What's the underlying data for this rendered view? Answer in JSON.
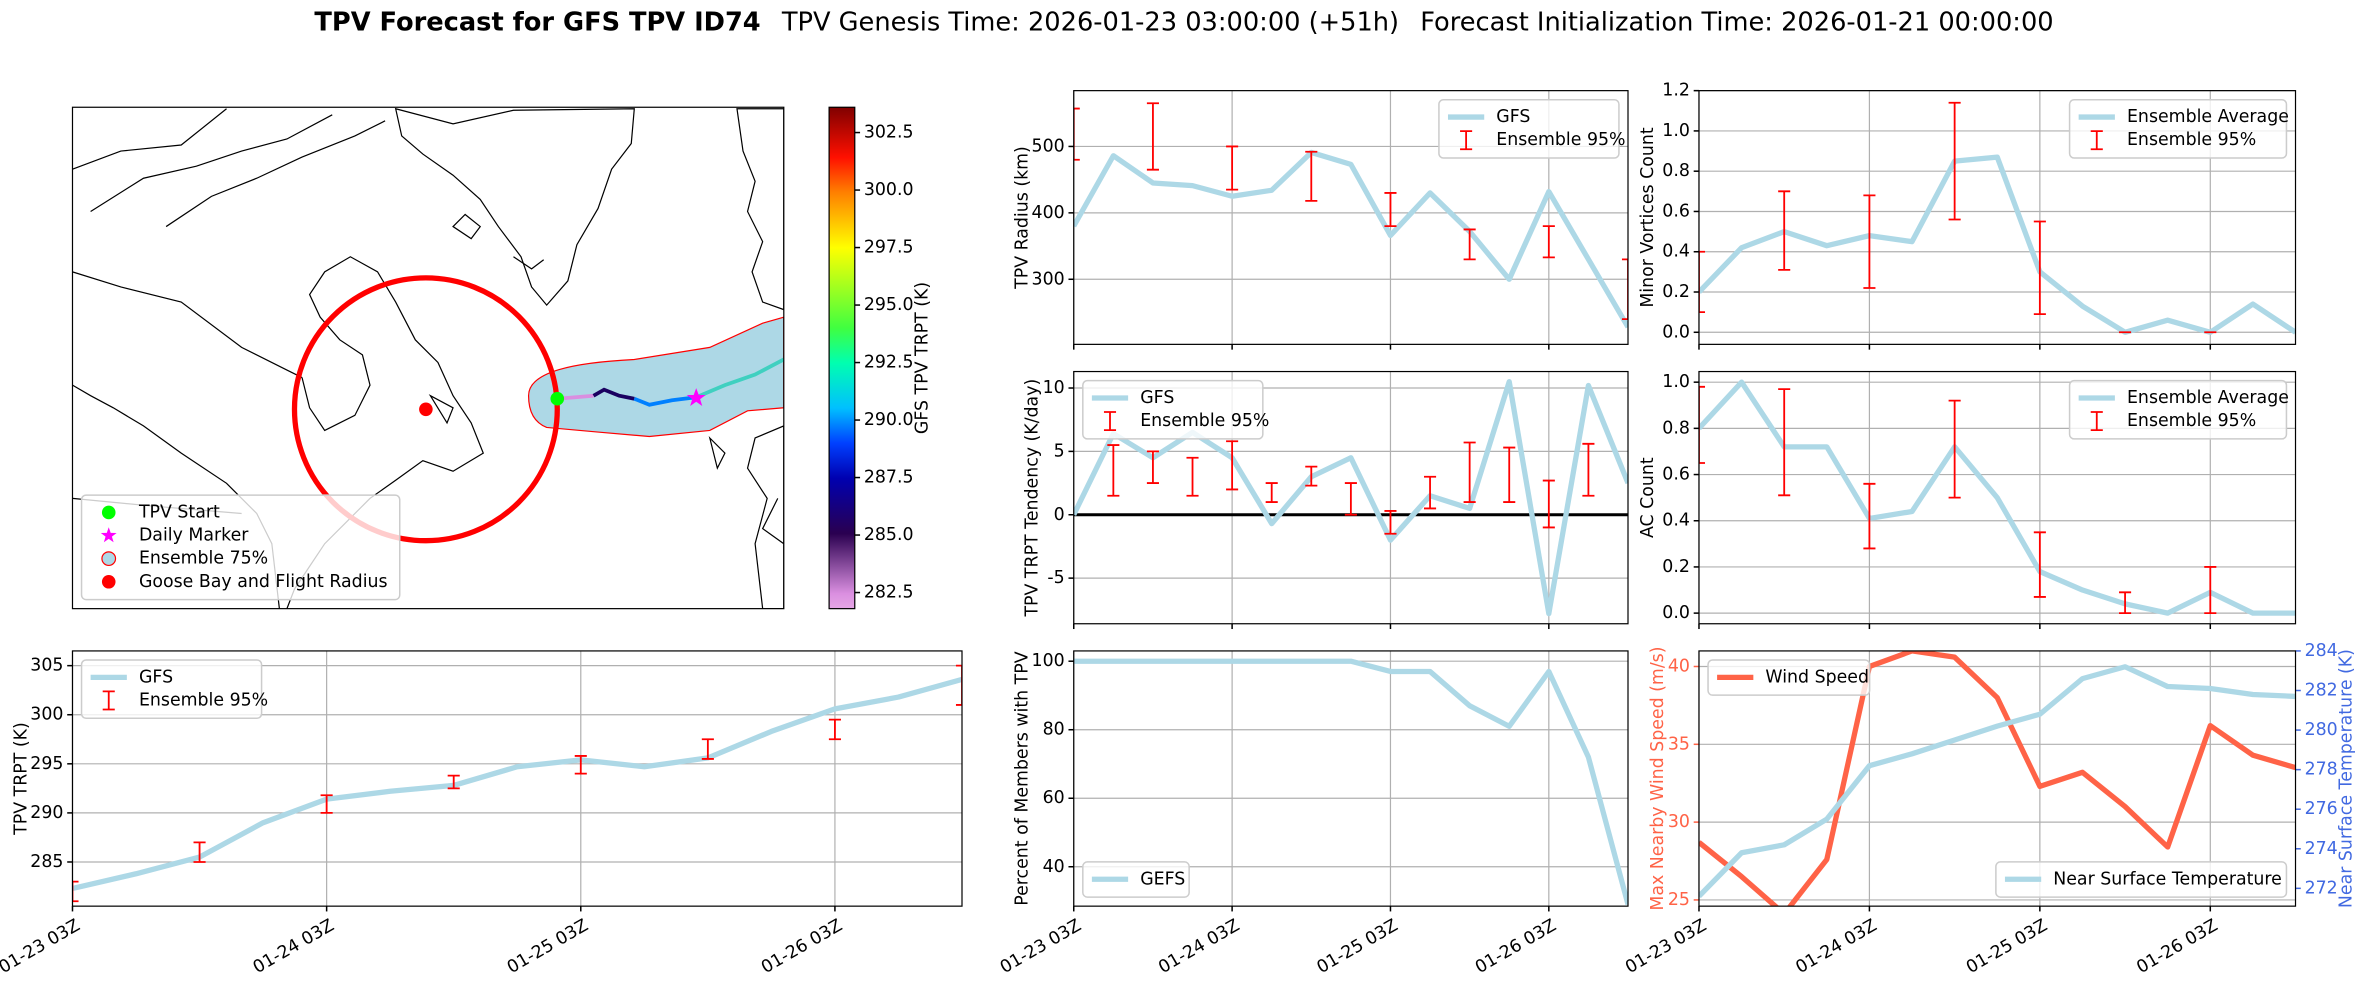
{
  "figure": {
    "title": "TPV Forecast for GFS TPV ID74",
    "genesis": "TPV Genesis Time: 2026-01-23 03:00:00 (+51h)",
    "init": "Forecast Initialization Time: 2026-01-21 00:00:00"
  },
  "chart_data": [
    {
      "type": "map",
      "legend_loc": "lower left",
      "legend": [
        {
          "label": "TPV Start",
          "color": "#00ff00",
          "marker": "circle"
        },
        {
          "label": "Daily Marker",
          "color": "#ff00ff",
          "marker": "star"
        },
        {
          "label": "Ensemble 75%",
          "color": "#add8e6",
          "marker": "circle"
        },
        {
          "label": "Goose Bay and Flight Radius",
          "color": "#ff0000",
          "marker": "circle"
        }
      ],
      "colorbar": {
        "label": "GFS TPV TRPT (K)",
        "clim": [
          281.8,
          303.6
        ],
        "ticks": [
          282.5,
          {
            "value": 285,
            "label": "285.0"
          },
          287.5,
          {
            "value": 290,
            "label": "290.0"
          },
          292.5,
          {
            "value": 295,
            "label": "295.0"
          },
          297.5,
          {
            "value": 300,
            "label": "300.0"
          },
          302.5
        ]
      }
    },
    {
      "type": "line",
      "ylabel": "TPV Radius (km)",
      "ylim": [
        202,
        584
      ],
      "yticks": [
        300,
        400,
        500
      ],
      "grid": true,
      "legend": "upper right",
      "series": [
        {
          "name": "GFS",
          "color": "#add8e6",
          "values": [
            380,
            486,
            445,
            441,
            425,
            434,
            491,
            473,
            366,
            430,
            372,
            300,
            432,
            330,
            228
          ]
        }
      ],
      "errorbars": {
        "name": "Ensemble 95%",
        "color": "#ff0000",
        "low": [
          480,
          null,
          465,
          null,
          435,
          null,
          418,
          null,
          380,
          null,
          330,
          null,
          333,
          null,
          240
        ],
        "high": [
          557,
          null,
          565,
          null,
          500,
          null,
          492,
          null,
          430,
          null,
          375,
          null,
          380,
          null,
          330
        ]
      }
    },
    {
      "type": "line",
      "ylabel": "Minor Vortices Count",
      "ylim": [
        -0.06,
        1.2
      ],
      "yticks": [
        {
          "value": 0,
          "label": "0.0"
        },
        0.2,
        0.4,
        0.6,
        0.8,
        {
          "value": 1,
          "label": "1.0"
        },
        1.2
      ],
      "grid": true,
      "legend": "upper right",
      "series": [
        {
          "name": "Ensemble Average",
          "color": "#add8e6",
          "values": [
            0.2,
            0.42,
            0.5,
            0.43,
            0.48,
            0.45,
            0.85,
            0.87,
            0.3,
            0.13,
            0.0,
            0.06,
            0.0,
            0.14,
            0.0
          ]
        }
      ],
      "errorbars": {
        "name": "Ensemble 95%",
        "color": "#ff0000",
        "low": [
          0.1,
          null,
          0.31,
          null,
          0.22,
          null,
          0.56,
          null,
          0.09,
          null,
          0.0,
          null,
          0.0,
          null,
          null
        ],
        "high": [
          0.4,
          null,
          0.7,
          null,
          0.68,
          null,
          1.14,
          null,
          0.55,
          null,
          0.0,
          null,
          0.0,
          null,
          null
        ]
      }
    },
    {
      "type": "line",
      "ylabel": "TPV TRPT Tendency (K/day)",
      "ylim": [
        -8.6,
        11.3
      ],
      "yticks": [
        -5,
        0,
        5,
        10
      ],
      "grid": true,
      "legend": "upper left",
      "hline": 0,
      "series": [
        {
          "name": "GFS",
          "color": "#add8e6",
          "values": [
            0,
            6.4,
            4.5,
            6.5,
            4.5,
            -0.7,
            3,
            4.5,
            -2,
            1.5,
            0.5,
            10.5,
            -7.8,
            10.2,
            2.5
          ]
        }
      ],
      "errorbars": {
        "name": "Ensemble 95%",
        "color": "#ff0000",
        "low": [
          null,
          1.5,
          2.5,
          1.5,
          2,
          1,
          2.3,
          0,
          -1.5,
          0.5,
          1,
          1,
          -1,
          1.5,
          null
        ],
        "high": [
          null,
          5.5,
          5,
          4.5,
          5.8,
          2.5,
          3.8,
          2.5,
          0.3,
          3,
          5.7,
          5.3,
          2.7,
          5.6,
          null
        ]
      }
    },
    {
      "type": "line",
      "ylabel": "AC Count",
      "ylim": [
        -0.046,
        1.046
      ],
      "yticks": [
        {
          "value": 0,
          "label": "0.0"
        },
        0.2,
        0.4,
        0.6,
        0.8,
        {
          "value": 1,
          "label": "1.0"
        }
      ],
      "grid": true,
      "legend": "upper right",
      "series": [
        {
          "name": "Ensemble Average",
          "color": "#add8e6",
          "values": [
            0.8,
            1.0,
            0.72,
            0.72,
            0.41,
            0.44,
            0.72,
            0.5,
            0.18,
            0.1,
            0.04,
            0.0,
            0.09,
            0.0,
            0.0
          ]
        }
      ],
      "errorbars": {
        "name": "Ensemble 95%",
        "color": "#ff0000",
        "low": [
          0.65,
          null,
          0.51,
          null,
          0.28,
          null,
          0.5,
          null,
          0.07,
          null,
          0.0,
          null,
          0.0,
          null,
          null
        ],
        "high": [
          0.98,
          null,
          0.97,
          null,
          0.56,
          null,
          0.92,
          null,
          0.35,
          null,
          0.09,
          null,
          0.2,
          null,
          null
        ]
      }
    },
    {
      "type": "line",
      "ylabel": "TPV TRPT (K)",
      "ylim": [
        280.5,
        306.5
      ],
      "yticks": [
        285,
        290,
        295,
        300,
        305
      ],
      "grid": true,
      "legend": "upper left",
      "categories": [
        "01-23 03Z",
        null,
        null,
        null,
        "01-24 03Z",
        null,
        null,
        null,
        "01-25 03Z",
        null,
        null,
        null,
        "01-26 03Z",
        null,
        null
      ],
      "series": [
        {
          "name": "GFS",
          "color": "#add8e6",
          "values": [
            282.3,
            283.8,
            285.5,
            289,
            291.4,
            292.2,
            292.8,
            294.7,
            295.4,
            294.7,
            295.6,
            298.3,
            300.6,
            301.8,
            303.6
          ]
        }
      ],
      "errorbars": {
        "name": "Ensemble 95%",
        "color": "#ff0000",
        "low": [
          281,
          null,
          285,
          null,
          290,
          null,
          292.5,
          null,
          294,
          null,
          295.5,
          null,
          297.5,
          null,
          301
        ],
        "high": [
          283,
          null,
          287,
          null,
          291.8,
          null,
          293.8,
          null,
          295.8,
          null,
          297.5,
          null,
          299.5,
          null,
          305
        ]
      }
    },
    {
      "type": "line",
      "ylabel": "Percent of Members with TPV",
      "ylim": [
        28.5,
        103
      ],
      "yticks": [
        40,
        60,
        80,
        100
      ],
      "grid": true,
      "legend": "lower left",
      "categories": [
        "01-23 03Z",
        null,
        null,
        null,
        "01-24 03Z",
        null,
        null,
        null,
        "01-25 03Z",
        null,
        null,
        null,
        "01-26 03Z",
        null,
        null
      ],
      "series": [
        {
          "name": "GEFS",
          "color": "#add8e6",
          "values": [
            100,
            100,
            100,
            100,
            100,
            100,
            100,
            100,
            97,
            97,
            87,
            81,
            97,
            72,
            29
          ]
        }
      ]
    },
    {
      "type": "line",
      "ylabel": "Max Nearby Wind Speed (m/s)",
      "ycolor": "#ff6347",
      "ylim": [
        24.6,
        41
      ],
      "yticks": [
        25,
        30,
        35,
        40
      ],
      "y2label": "Near Surface Temperature (K)",
      "y2color": "#4169e1",
      "y2lim": [
        271.1,
        284
      ],
      "y2ticks": [
        272,
        274,
        276,
        278,
        280,
        282,
        284
      ],
      "grid": true,
      "legend": "upper left",
      "legend2": "lower right",
      "categories": [
        "01-23 03Z",
        null,
        null,
        null,
        "01-24 03Z",
        null,
        null,
        null,
        "01-25 03Z",
        null,
        null,
        null,
        "01-26 03Z",
        null,
        null
      ],
      "series": [
        {
          "name": "Wind Speed",
          "color": "#ff6347",
          "values": [
            28.7,
            26.5,
            24.1,
            27.6,
            40,
            41,
            40.6,
            38,
            32.3,
            33.2,
            31,
            28.4,
            36.2,
            34.3,
            33.5
          ]
        },
        {
          "name": "Near Surface Temperature",
          "color": "#add8e6",
          "axis": "y2",
          "values": [
            271.6,
            273.8,
            274.2,
            275.5,
            278.2,
            278.8,
            279.5,
            280.2,
            280.8,
            282.6,
            283.2,
            282.2,
            282.1,
            281.8,
            281.7
          ]
        }
      ]
    }
  ]
}
